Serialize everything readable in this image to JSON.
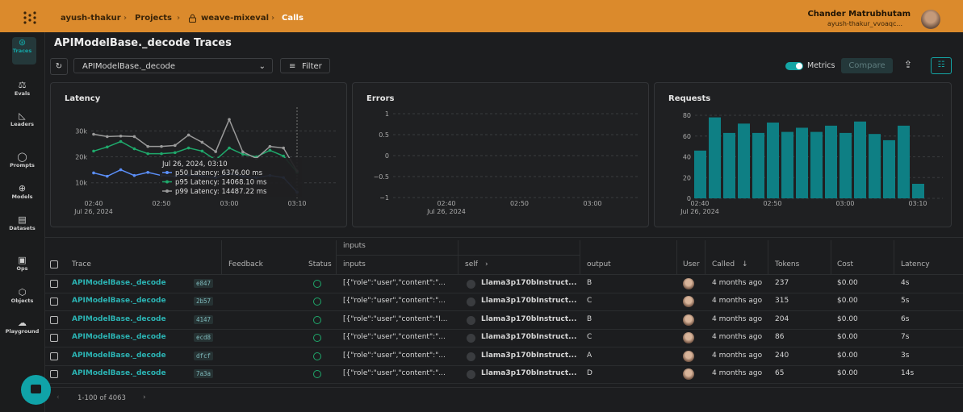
{
  "header": {
    "breadcrumbs": [
      "ayush-thakur",
      "Projects",
      "weave-mixeval",
      "Calls"
    ],
    "user_name": "Chander Matrubhutam",
    "user_handle": "ayush-thakur_vvoaqc..."
  },
  "sidebar": [
    "Traces",
    "Evals",
    "Leaders",
    "Prompts",
    "Models",
    "Datasets",
    "Ops",
    "Objects",
    "Playground"
  ],
  "page_title": "APIModelBase._decode Traces",
  "toolbar": {
    "op_select": "APIModelBase._decode",
    "filter": "Filter",
    "metrics": "Metrics",
    "compare": "Compare"
  },
  "chart_data": [
    {
      "type": "line",
      "title": "Latency",
      "x_date_label": "Jul 26, 2024",
      "categories": [
        "02:40",
        null,
        null,
        null,
        null,
        "02:50",
        null,
        null,
        null,
        null,
        "03:00",
        null,
        null,
        null,
        null,
        "03:10"
      ],
      "ylim": [
        4000,
        36000
      ],
      "yticks": [
        {
          "value": 10000,
          "label": "10k"
        },
        {
          "value": 20000,
          "label": "20k"
        },
        {
          "value": 30000,
          "label": "30k"
        }
      ],
      "grid": true,
      "series": [
        {
          "color": "#5b8ff9",
          "values": [
            13800,
            12500,
            15000,
            12800,
            14000,
            12800,
            12500,
            13000,
            12500,
            12000,
            13500,
            12500,
            12000,
            12800,
            12000,
            6376
          ]
        },
        {
          "color": "#1fa86b",
          "values": [
            22200,
            23800,
            25900,
            23100,
            21200,
            21200,
            21600,
            23400,
            22200,
            18800,
            23400,
            21000,
            20000,
            22500,
            20300,
            14068.1
          ]
        },
        {
          "color": "#9a9a9a",
          "values": [
            28700,
            27800,
            28000,
            27800,
            24000,
            24000,
            24400,
            28400,
            25600,
            22000,
            34400,
            21900,
            19400,
            24000,
            23400,
            14487.22
          ]
        }
      ],
      "tooltip": {
        "title": "Jul 26, 2024, 03:10",
        "lines": [
          "p50 Latency: 6376.00 ms",
          "p95 Latency: 14068.10 ms",
          "p99 Latency: 14487.22 ms"
        ]
      }
    },
    {
      "type": "line",
      "title": "Errors",
      "x_date_label": "Jul 26, 2024",
      "categories": [
        "02:40",
        "02:50",
        "03:00"
      ],
      "ylim": [
        -1,
        1
      ],
      "yticks": [
        {
          "value": -1,
          "label": "−1"
        },
        {
          "value": -0.5,
          "label": "−0.5"
        },
        0,
        0.5,
        1
      ],
      "grid": true
    },
    {
      "type": "bar",
      "title": "Requests",
      "x_date_label": "Jul 26, 2024",
      "categories": [
        "02:40",
        null,
        null,
        null,
        null,
        "02:50",
        null,
        null,
        null,
        null,
        "03:00",
        null,
        null,
        null,
        null,
        "03:10"
      ],
      "values": [
        46,
        78,
        63,
        72,
        63,
        73,
        64,
        68,
        64,
        70,
        63,
        74,
        62,
        56,
        70,
        14
      ],
      "color": "#0e7f84",
      "ylim": [
        0,
        88
      ],
      "yticks": [
        0,
        20,
        40,
        60,
        80
      ],
      "grid": true
    }
  ],
  "table": {
    "group_header": "inputs",
    "columns": [
      "Trace",
      "Feedback",
      "Status",
      "inputs",
      "self",
      "output",
      "User",
      "Called",
      "Tokens",
      "Cost",
      "Latency"
    ],
    "rows": [
      {
        "trace": "APIModelBase._decode",
        "id": "e847",
        "inputs": "[{\"role\":\"user\",\"content\":\"...",
        "self": "Llama3p170bInstruct...",
        "output": "B",
        "called": "4 months ago",
        "tokens": "237",
        "cost": "$0.00",
        "latency": "4s"
      },
      {
        "trace": "APIModelBase._decode",
        "id": "2b57",
        "inputs": "[{\"role\":\"user\",\"content\":\"...",
        "self": "Llama3p170bInstruct...",
        "output": "C",
        "called": "4 months ago",
        "tokens": "315",
        "cost": "$0.00",
        "latency": "5s"
      },
      {
        "trace": "APIModelBase._decode",
        "id": "4147",
        "inputs": "[{\"role\":\"user\",\"content\":\"I...",
        "self": "Llama3p170bInstruct...",
        "output": "B",
        "called": "4 months ago",
        "tokens": "204",
        "cost": "$0.00",
        "latency": "6s"
      },
      {
        "trace": "APIModelBase._decode",
        "id": "ecd8",
        "inputs": "[{\"role\":\"user\",\"content\":\"...",
        "self": "Llama3p170bInstruct...",
        "output": "C",
        "called": "4 months ago",
        "tokens": "86",
        "cost": "$0.00",
        "latency": "7s"
      },
      {
        "trace": "APIModelBase._decode",
        "id": "dfcf",
        "inputs": "[{\"role\":\"user\",\"content\":\"...",
        "self": "Llama3p170bInstruct...",
        "output": "A",
        "called": "4 months ago",
        "tokens": "240",
        "cost": "$0.00",
        "latency": "3s"
      },
      {
        "trace": "APIModelBase._decode",
        "id": "7a3a",
        "inputs": "[{\"role\":\"user\",\"content\":\"...",
        "self": "Llama3p170bInstruct...",
        "output": "D",
        "called": "4 months ago",
        "tokens": "65",
        "cost": "$0.00",
        "latency": "14s"
      }
    ]
  },
  "footer": {
    "pagination": "1-100 of 4063"
  }
}
